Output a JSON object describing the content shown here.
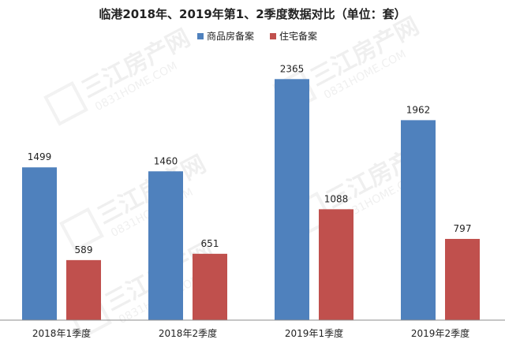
{
  "chart_data": {
    "type": "bar",
    "title": "临港2018年、2019年第1、2季度数据对比（单位：套）",
    "categories": [
      "2018年1季度",
      "2018年2季度",
      "2019年1季度",
      "2019年2季度"
    ],
    "series": [
      {
        "name": "商品房备案",
        "color": "#4f81bd",
        "values": [
          1499,
          1460,
          2365,
          1962
        ]
      },
      {
        "name": "住宅备案",
        "color": "#c0504d",
        "values": [
          589,
          651,
          1088,
          797
        ]
      }
    ],
    "ylim": [
      0,
      2700
    ],
    "grid": false,
    "legend_position": "top-center"
  },
  "watermark": {
    "brand": "三江房产网",
    "domain": "0831HOME.COM"
  }
}
